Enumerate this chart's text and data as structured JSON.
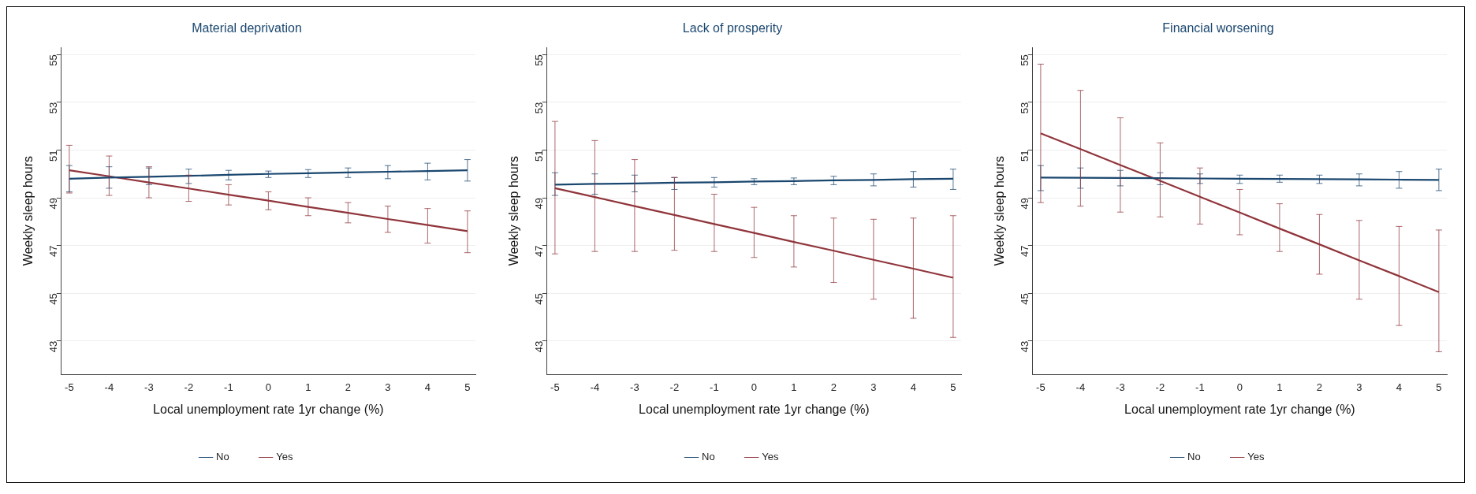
{
  "chart_data": [
    {
      "type": "line",
      "title": "Material deprivation",
      "xlabel": "Local unemployment rate 1yr change (%)",
      "ylabel": "Weekly sleep hours",
      "x": [
        -5,
        -4,
        -3,
        -2,
        -1,
        0,
        1,
        2,
        3,
        4,
        5
      ],
      "xlim": [
        -5.2,
        5.2
      ],
      "xticks": [
        -5,
        -4,
        -3,
        -2,
        -1,
        0,
        1,
        2,
        3,
        4,
        5
      ],
      "ylim": [
        41.6,
        55.3
      ],
      "yticks": [
        43,
        45,
        47,
        49,
        51,
        53,
        55
      ],
      "grid": "y",
      "legend": "bottom",
      "marker": "none",
      "line_style": "solid",
      "series": [
        {
          "name": "No",
          "color": "#1a476f",
          "values": [
            49.8,
            49.85,
            49.88,
            49.92,
            49.96,
            50.0,
            50.03,
            50.06,
            50.09,
            50.12,
            50.15
          ],
          "errors": [
            [
              49.25,
              50.35
            ],
            [
              49.4,
              50.3
            ],
            [
              49.55,
              50.25
            ],
            [
              49.6,
              50.2
            ],
            [
              49.75,
              50.15
            ],
            [
              49.85,
              50.12
            ],
            [
              49.85,
              50.18
            ],
            [
              49.85,
              50.25
            ],
            [
              49.8,
              50.35
            ],
            [
              49.75,
              50.45
            ],
            [
              49.7,
              50.6
            ]
          ]
        },
        {
          "name": "Yes",
          "color": "#90353b",
          "values": [
            50.15,
            49.9,
            49.64,
            49.39,
            49.13,
            48.88,
            48.62,
            48.37,
            48.11,
            47.86,
            47.6
          ],
          "errors": [
            [
              49.2,
              51.2
            ],
            [
              49.1,
              50.75
            ],
            [
              49.0,
              50.3
            ],
            [
              48.85,
              49.95
            ],
            [
              48.7,
              49.55
            ],
            [
              48.5,
              49.25
            ],
            [
              48.25,
              49.0
            ],
            [
              47.95,
              48.8
            ],
            [
              47.55,
              48.65
            ],
            [
              47.1,
              48.55
            ],
            [
              46.7,
              48.45
            ]
          ]
        }
      ]
    },
    {
      "type": "line",
      "title": "Lack of prosperity",
      "xlabel": "Local unemployment rate 1yr change (%)",
      "ylabel": "Weekly sleep hours",
      "x": [
        -5,
        -4,
        -3,
        -2,
        -1,
        0,
        1,
        2,
        3,
        4,
        5
      ],
      "xlim": [
        -5.2,
        5.2
      ],
      "xticks": [
        -5,
        -4,
        -3,
        -2,
        -1,
        0,
        1,
        2,
        3,
        4,
        5
      ],
      "ylim": [
        41.6,
        55.3
      ],
      "yticks": [
        43,
        45,
        47,
        49,
        51,
        53,
        55
      ],
      "grid": "y",
      "legend": "bottom",
      "marker": "none",
      "line_style": "solid",
      "series": [
        {
          "name": "No",
          "color": "#1a476f",
          "values": [
            49.55,
            49.58,
            49.6,
            49.63,
            49.65,
            49.68,
            49.7,
            49.73,
            49.75,
            49.78,
            49.8
          ],
          "errors": [
            [
              49.1,
              50.05
            ],
            [
              49.15,
              50.0
            ],
            [
              49.25,
              49.95
            ],
            [
              49.35,
              49.85
            ],
            [
              49.45,
              49.85
            ],
            [
              49.55,
              49.8
            ],
            [
              49.55,
              49.83
            ],
            [
              49.55,
              49.9
            ],
            [
              49.5,
              50.0
            ],
            [
              49.45,
              50.1
            ],
            [
              49.35,
              50.2
            ]
          ]
        },
        {
          "name": "Yes",
          "color": "#90353b",
          "values": [
            49.4,
            49.03,
            48.65,
            48.28,
            47.9,
            47.53,
            47.15,
            46.78,
            46.4,
            46.03,
            45.65
          ],
          "errors": [
            [
              46.65,
              52.2
            ],
            [
              46.75,
              51.4
            ],
            [
              46.75,
              50.6
            ],
            [
              46.8,
              49.85
            ],
            [
              46.75,
              49.15
            ],
            [
              46.5,
              48.6
            ],
            [
              46.1,
              48.25
            ],
            [
              45.45,
              48.15
            ],
            [
              44.75,
              48.1
            ],
            [
              43.95,
              48.15
            ],
            [
              43.15,
              48.25
            ]
          ]
        }
      ]
    },
    {
      "type": "line",
      "title": "Financial worsening",
      "xlabel": "Local unemployment rate 1yr change (%)",
      "ylabel": "Weekly sleep hours",
      "x": [
        -5,
        -4,
        -3,
        -2,
        -1,
        0,
        1,
        2,
        3,
        4,
        5
      ],
      "xlim": [
        -5.2,
        5.2
      ],
      "xticks": [
        -5,
        -4,
        -3,
        -2,
        -1,
        0,
        1,
        2,
        3,
        4,
        5
      ],
      "ylim": [
        41.6,
        55.3
      ],
      "yticks": [
        43,
        45,
        47,
        49,
        51,
        53,
        55
      ],
      "grid": "y",
      "legend": "bottom",
      "marker": "none",
      "line_style": "solid",
      "series": [
        {
          "name": "No",
          "color": "#1a476f",
          "values": [
            49.85,
            49.84,
            49.83,
            49.82,
            49.81,
            49.8,
            49.79,
            49.78,
            49.77,
            49.76,
            49.75
          ],
          "errors": [
            [
              49.3,
              50.35
            ],
            [
              49.4,
              50.25
            ],
            [
              49.5,
              50.15
            ],
            [
              49.55,
              50.05
            ],
            [
              49.6,
              50.0
            ],
            [
              49.6,
              49.95
            ],
            [
              49.65,
              49.95
            ],
            [
              49.6,
              49.95
            ],
            [
              49.5,
              50.0
            ],
            [
              49.4,
              50.1
            ],
            [
              49.3,
              50.2
            ]
          ]
        },
        {
          "name": "Yes",
          "color": "#90353b",
          "values": [
            51.7,
            51.04,
            50.37,
            49.71,
            49.04,
            48.38,
            47.71,
            47.05,
            46.38,
            45.72,
            45.05
          ],
          "errors": [
            [
              48.8,
              54.6
            ],
            [
              48.65,
              53.5
            ],
            [
              48.4,
              52.35
            ],
            [
              48.2,
              51.3
            ],
            [
              47.9,
              50.25
            ],
            [
              47.45,
              49.35
            ],
            [
              46.75,
              48.75
            ],
            [
              45.8,
              48.3
            ],
            [
              44.75,
              48.05
            ],
            [
              43.65,
              47.8
            ],
            [
              42.55,
              47.65
            ]
          ]
        }
      ]
    }
  ]
}
